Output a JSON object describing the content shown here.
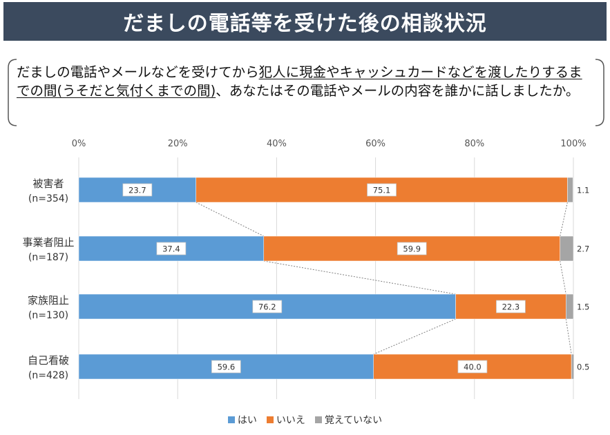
{
  "title": "だましの電話等を受けた後の相談状況",
  "question": {
    "part1": "だましの電話やメールなどを受けてから",
    "part2_underlined": "犯人に現金やキャッシュカードなどを渡したりするまでの間(うそだと気付くまでの間)",
    "part3": "、あなたはその電話やメールの内容を誰かに話しましたか。"
  },
  "colors": {
    "yes": "#5b9bd5",
    "no": "#ed7d31",
    "dontremember": "#a5a5a5",
    "title_bg": "#3b4a5e"
  },
  "chart_data": {
    "type": "bar",
    "orientation": "horizontal",
    "stacked": "percent",
    "categories": [
      {
        "name": "被害者",
        "n": "(n=354)"
      },
      {
        "name": "事業者阻止",
        "n": "(n=187)"
      },
      {
        "name": "家族阻止",
        "n": "(n=130)"
      },
      {
        "name": "自己看破",
        "n": "(n=428)"
      }
    ],
    "series": [
      {
        "name": "はい",
        "values": [
          23.7,
          37.4,
          76.2,
          59.6
        ]
      },
      {
        "name": "いいえ",
        "values": [
          75.1,
          59.9,
          22.3,
          40.0
        ]
      },
      {
        "name": "覚えていない",
        "values": [
          1.1,
          2.7,
          1.5,
          0.5
        ]
      }
    ],
    "value_labels": [
      [
        "23.7",
        "37.4",
        "76.2",
        "59.6"
      ],
      [
        "75.1",
        "59.9",
        "22.3",
        "40.0"
      ],
      [
        "1.1",
        "2.7",
        "1.5",
        "0.5"
      ]
    ],
    "xaxis": {
      "ticks": [
        "0%",
        "20%",
        "40%",
        "60%",
        "80%",
        "100%"
      ],
      "range": [
        0,
        100
      ]
    },
    "grid": true,
    "legend_position": "bottom"
  }
}
